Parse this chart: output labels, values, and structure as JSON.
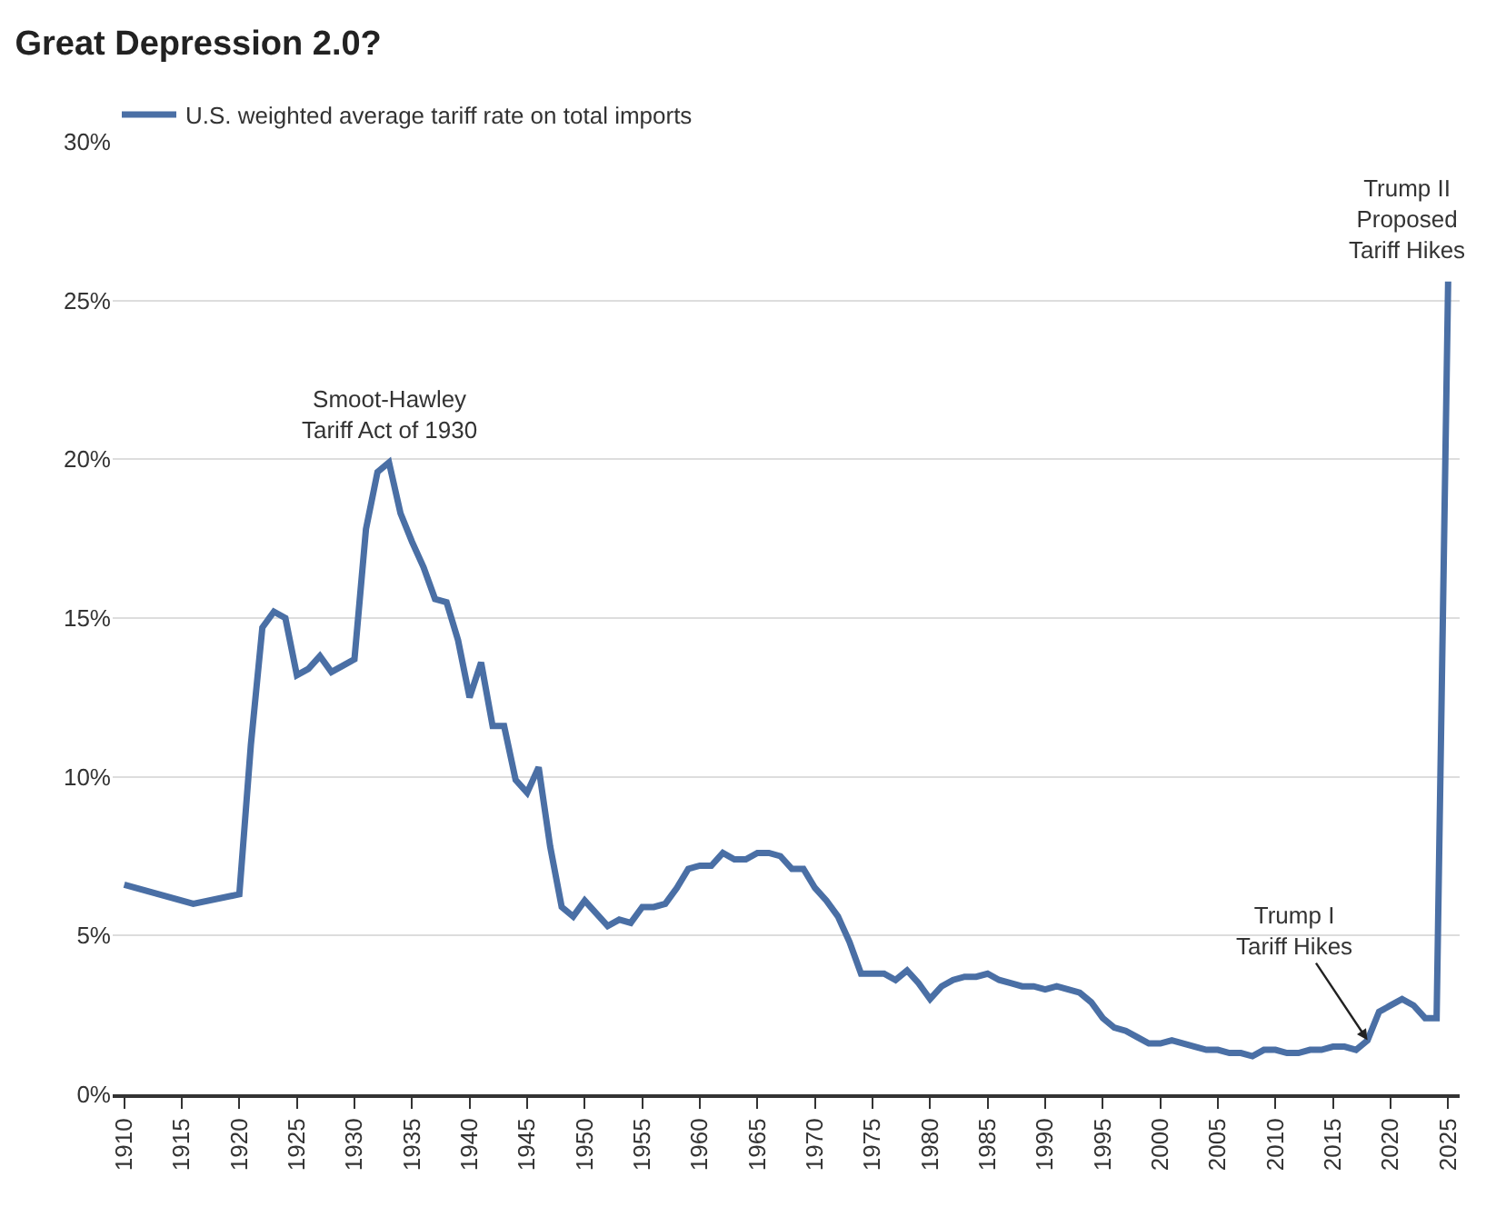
{
  "chart_data": {
    "type": "line",
    "title": "Great Depression 2.0?",
    "x": [
      1910,
      1916,
      1920,
      1921,
      1922,
      1923,
      1924,
      1925,
      1926,
      1927,
      1928,
      1929,
      1930,
      1931,
      1932,
      1933,
      1934,
      1935,
      1936,
      1937,
      1938,
      1939,
      1940,
      1941,
      1942,
      1943,
      1944,
      1945,
      1946,
      1947,
      1948,
      1949,
      1950,
      1951,
      1952,
      1953,
      1954,
      1955,
      1956,
      1957,
      1958,
      1959,
      1960,
      1961,
      1962,
      1963,
      1964,
      1965,
      1966,
      1967,
      1968,
      1969,
      1970,
      1971,
      1972,
      1973,
      1974,
      1975,
      1976,
      1977,
      1978,
      1979,
      1980,
      1981,
      1982,
      1983,
      1984,
      1985,
      1986,
      1987,
      1988,
      1989,
      1990,
      1991,
      1992,
      1993,
      1994,
      1995,
      1996,
      1997,
      1998,
      1999,
      2000,
      2001,
      2002,
      2003,
      2004,
      2005,
      2006,
      2007,
      2008,
      2009,
      2010,
      2011,
      2012,
      2013,
      2014,
      2015,
      2016,
      2017,
      2018,
      2019,
      2020,
      2021,
      2022,
      2023,
      2024,
      2025
    ],
    "series": [
      {
        "name": "U.S. weighted average tariff rate on total imports",
        "color": "#4a6fa5",
        "values": [
          6.6,
          6.0,
          6.3,
          11.0,
          14.7,
          15.2,
          15.0,
          13.2,
          13.4,
          13.8,
          13.3,
          13.5,
          13.7,
          17.8,
          19.6,
          19.9,
          18.3,
          17.4,
          16.6,
          15.6,
          15.5,
          14.3,
          12.5,
          13.6,
          11.6,
          11.6,
          9.9,
          9.5,
          10.3,
          7.8,
          5.9,
          5.6,
          6.1,
          5.7,
          5.3,
          5.5,
          5.4,
          5.9,
          5.9,
          6.0,
          6.5,
          7.1,
          7.2,
          7.2,
          7.6,
          7.4,
          7.4,
          7.6,
          7.6,
          7.5,
          7.1,
          7.1,
          6.5,
          6.1,
          5.6,
          4.8,
          3.8,
          3.8,
          3.8,
          3.6,
          3.9,
          3.5,
          3.0,
          3.4,
          3.6,
          3.7,
          3.7,
          3.8,
          3.6,
          3.5,
          3.4,
          3.4,
          3.3,
          3.4,
          3.3,
          3.2,
          2.9,
          2.4,
          2.1,
          2.0,
          1.8,
          1.6,
          1.6,
          1.7,
          1.6,
          1.5,
          1.4,
          1.4,
          1.3,
          1.3,
          1.2,
          1.4,
          1.4,
          1.3,
          1.3,
          1.4,
          1.4,
          1.5,
          1.5,
          1.4,
          1.7,
          2.6,
          2.8,
          3.0,
          2.8,
          2.4,
          2.4,
          25.6
        ]
      }
    ],
    "xlim": [
      1909,
      2026
    ],
    "xticks": [
      1910,
      1915,
      1920,
      1925,
      1930,
      1935,
      1940,
      1945,
      1950,
      1955,
      1960,
      1965,
      1970,
      1975,
      1980,
      1985,
      1990,
      1995,
      2000,
      2005,
      2010,
      2015,
      2020,
      2025
    ],
    "ylim": [
      0,
      30
    ],
    "yticks": [
      {
        "value": 0,
        "label": "0%"
      },
      {
        "value": 5,
        "label": "5%"
      },
      {
        "value": 10,
        "label": "10%"
      },
      {
        "value": 15,
        "label": "15%"
      },
      {
        "value": 20,
        "label": "20%"
      },
      {
        "value": 25,
        "label": "25%"
      },
      {
        "value": 30,
        "label": "30%"
      }
    ],
    "grid": "y",
    "legend": "top left",
    "line_style": "solid",
    "annotations": [
      {
        "text": "Smoot-Hawley\nTariff Act of 1930",
        "x": 1933,
        "y": 19.9
      },
      {
        "text": "Trump II\nProposed\nTariff Hikes",
        "x": 2025,
        "y": 25.6
      },
      {
        "text": "Trump I\nTariff Hikes",
        "x": 2018,
        "y": 1.7
      }
    ]
  }
}
